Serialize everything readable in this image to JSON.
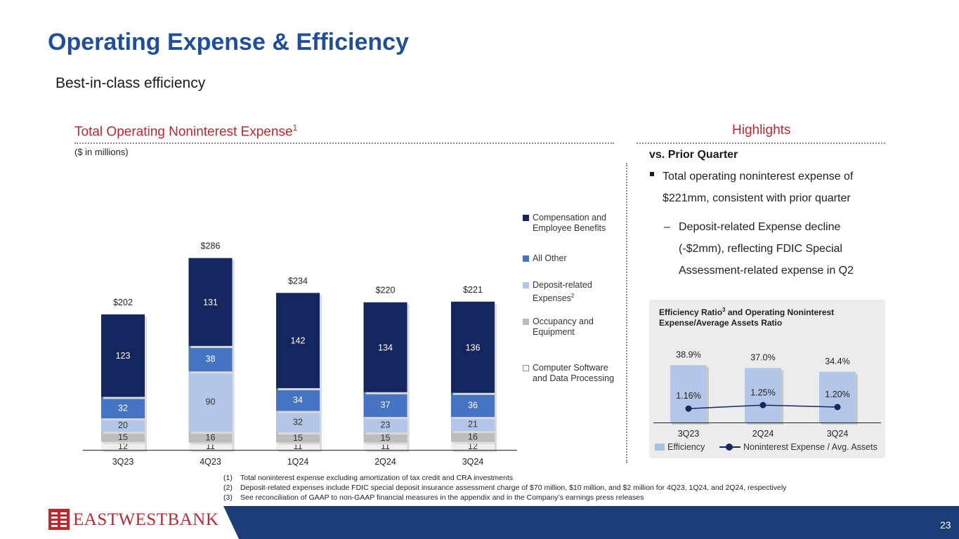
{
  "page": {
    "title": "Operating Expense & Efficiency",
    "subtitle": "Best-in-class efficiency",
    "page_number": "23",
    "logo_text": "EASTWESTBANK"
  },
  "left_section": {
    "heading": "Total Operating Noninterest Expense",
    "heading_sup": "1",
    "units": "($ in millions)"
  },
  "highlights": {
    "heading": "Highlights",
    "subheading": "vs. Prior Quarter",
    "bullet": "Total operating noninterest expense of $221mm, consistent with prior quarter",
    "sub_bullet_dash": "–",
    "sub_bullet": "Deposit-related Expense decline (-$2mm), reflecting FDIC Special Assessment-related expense in Q2"
  },
  "legend": [
    {
      "label": "Compensation and Employee Benefits",
      "sup": ""
    },
    {
      "label": "All Other",
      "sup": ""
    },
    {
      "label": "Deposit-related Expenses",
      "sup": "2"
    },
    {
      "label": "Occupancy and Equipment",
      "sup": ""
    },
    {
      "label": "Computer Software and Data Processing",
      "sup": ""
    }
  ],
  "efficiency_box": {
    "title_part1": "Efficiency Ratio",
    "title_sup": "3",
    "title_part2": " and Operating Noninterest Expense/Average Assets Ratio",
    "legend_bar": "Efficiency",
    "legend_line": "Noninterest Expense / Avg. Assets"
  },
  "footnotes": [
    {
      "num": "(1)",
      "text": "Total noninterest expense excluding amortization of tax credit and CRA investments"
    },
    {
      "num": "(2)",
      "text": "Deposit-related expenses include FDIC special deposit insurance assessment charge of $70 million, $10 million, and $2 million for 4Q23, 1Q24, and 2Q24, respectively"
    },
    {
      "num": "(3)",
      "text": "See reconciliation of GAAP to non-GAAP financial measures in the appendix and in the Company’s earnings press releases"
    }
  ],
  "colors": {
    "compensation": "#14265e",
    "all_other": "#4673c2",
    "deposit": "#b3c6e7",
    "occupancy": "#bcbcbc",
    "computer": "#efefef",
    "title_blue": "#1f4e9c",
    "accent_red": "#c0272d"
  },
  "chart_data": [
    {
      "type": "bar",
      "stacked": true,
      "title": "Total Operating Noninterest Expense",
      "ylabel": "($ in millions)",
      "categories": [
        "3Q23",
        "4Q23",
        "1Q24",
        "2Q24",
        "3Q24"
      ],
      "series": [
        {
          "name": "Computer Software and Data Processing",
          "values": [
            12,
            11,
            11,
            11,
            12
          ]
        },
        {
          "name": "Occupancy and Equipment",
          "values": [
            15,
            16,
            15,
            15,
            16
          ]
        },
        {
          "name": "Deposit-related Expenses",
          "values": [
            20,
            90,
            32,
            23,
            21
          ]
        },
        {
          "name": "All Other",
          "values": [
            32,
            38,
            34,
            37,
            36
          ]
        },
        {
          "name": "Compensation and Employee Benefits",
          "values": [
            123,
            131,
            142,
            134,
            136
          ]
        }
      ],
      "totals": [
        "$202",
        "$286",
        "$234",
        "$220",
        "$221"
      ],
      "ylim": [
        0,
        300
      ]
    },
    {
      "type": "bar+line",
      "title": "Efficiency Ratio and Operating Noninterest Expense/Average Assets Ratio",
      "categories": [
        "3Q23",
        "2Q24",
        "3Q24"
      ],
      "series": [
        {
          "name": "Efficiency",
          "type": "bar",
          "values": [
            38.9,
            37.0,
            34.4
          ],
          "labels": [
            "38.9%",
            "37.0%",
            "34.4%"
          ]
        },
        {
          "name": "Noninterest Expense / Avg. Assets",
          "type": "line",
          "values": [
            1.16,
            1.25,
            1.2
          ],
          "labels": [
            "1.16%",
            "1.25%",
            "1.20%"
          ]
        }
      ]
    }
  ]
}
